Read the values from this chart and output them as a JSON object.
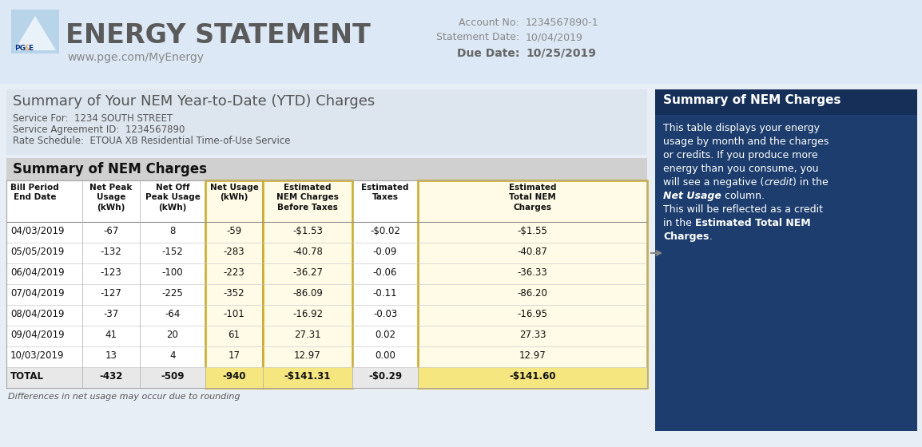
{
  "bg_color": "#e8eef5",
  "header_bg": "#dce8f5",
  "title_main": "ENERGY STATEMENT",
  "title_sub": "www.pge.com/MyEnergy",
  "account_no_label": "Account No:",
  "account_no_value": "1234567890-1",
  "statement_date_label": "Statement Date:",
  "statement_date_value": "10/04/2019",
  "due_date_label": "Due Date:",
  "due_date_value": "10/25/2019",
  "ytd_title": "Summary of Your NEM Year-to-Date (YTD) Charges",
  "service_for": "Service For:  1234 SOUTH STREET",
  "service_agreement": "Service Agreement ID:  1234567890",
  "rate_schedule": "Rate Schedule:  ETOUA XB Residential Time-of-Use Service",
  "nem_charges_title": "Summary of NEM Charges",
  "col_headers": [
    "Bill Period\nEnd Date",
    "Net Peak\nUsage\n(kWh)",
    "Net Off\nPeak Usage\n(kWh)",
    "Net Usage\n(kWh)",
    "Estimated\nNEM Charges\nBefore Taxes",
    "Estimated\nTaxes",
    "Estimated\nTotal NEM\nCharges"
  ],
  "rows": [
    [
      "04/03/2019",
      "-67",
      "8",
      "-59",
      "-$1.53",
      "-$0.02",
      "-$1.55"
    ],
    [
      "05/05/2019",
      "-132",
      "-152",
      "-283",
      "-40.78",
      "-0.09",
      "-40.87"
    ],
    [
      "06/04/2019",
      "-123",
      "-100",
      "-223",
      "-36.27",
      "-0.06",
      "-36.33"
    ],
    [
      "07/04/2019",
      "-127",
      "-225",
      "-352",
      "-86.09",
      "-0.11",
      "-86.20"
    ],
    [
      "08/04/2019",
      "-37",
      "-64",
      "-101",
      "-16.92",
      "-0.03",
      "-16.95"
    ],
    [
      "09/04/2019",
      "41",
      "20",
      "61",
      "27.31",
      "0.02",
      "27.33"
    ],
    [
      "10/03/2019",
      "13",
      "4",
      "17",
      "12.97",
      "0.00",
      "12.97"
    ],
    [
      "TOTAL",
      "-432",
      "-509",
      "-940",
      "-$141.31",
      "-$0.29",
      "-$141.60"
    ]
  ],
  "footnote": "Differences in net usage may occur due to rounding",
  "highlight_cols": [
    3,
    4,
    6
  ],
  "sidebar_title": "Summary of NEM Charges",
  "sidebar_bg": "#1c3d6e",
  "arrow_row": 1
}
